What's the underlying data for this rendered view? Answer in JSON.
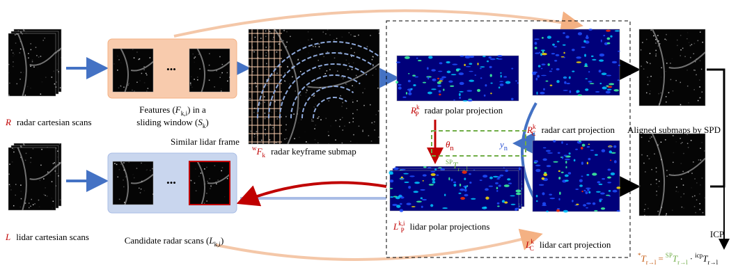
{
  "inputs": {
    "radar": [
      "R",
      "radar cartesian scans"
    ],
    "lidar": [
      "L",
      "lidar cartesian scans"
    ]
  },
  "sliding_window": {
    "ellipsis": "•••",
    "caption": [
      "Features (",
      "F",
      "k,i",
      ") in a",
      "sliding window (",
      "S",
      "k",
      ")"
    ]
  },
  "candidates": {
    "ellipsis": "•••",
    "caption": [
      "Candidate radar scans (",
      "L",
      "k,i",
      ")"
    ]
  },
  "similar_frame": "Similar lidar frame",
  "submap": [
    "w",
    "F",
    "k",
    "radar keyframe submap"
  ],
  "radar_polar": [
    "R",
    "k",
    "P",
    "radar polar projection"
  ],
  "radar_cart": [
    "R",
    "k",
    "C",
    "radar cart projection"
  ],
  "lidar_polar": [
    "L",
    "k,i",
    "P",
    "lidar polar projections"
  ],
  "lidar_cart": [
    "L",
    "k",
    "C",
    "lidar cart projection"
  ],
  "estimate": {
    "theta": [
      "θ",
      "n"
    ],
    "y": [
      "y",
      "n"
    ],
    "transform": [
      "SP",
      "T",
      "r→l"
    ]
  },
  "aligned": "Aligned submaps by SPD",
  "icp": "ICP",
  "final": [
    "*",
    "T",
    "r→l",
    "=",
    "SP",
    "T",
    "r→l",
    "·",
    "icp",
    "T",
    "r→l"
  ]
}
